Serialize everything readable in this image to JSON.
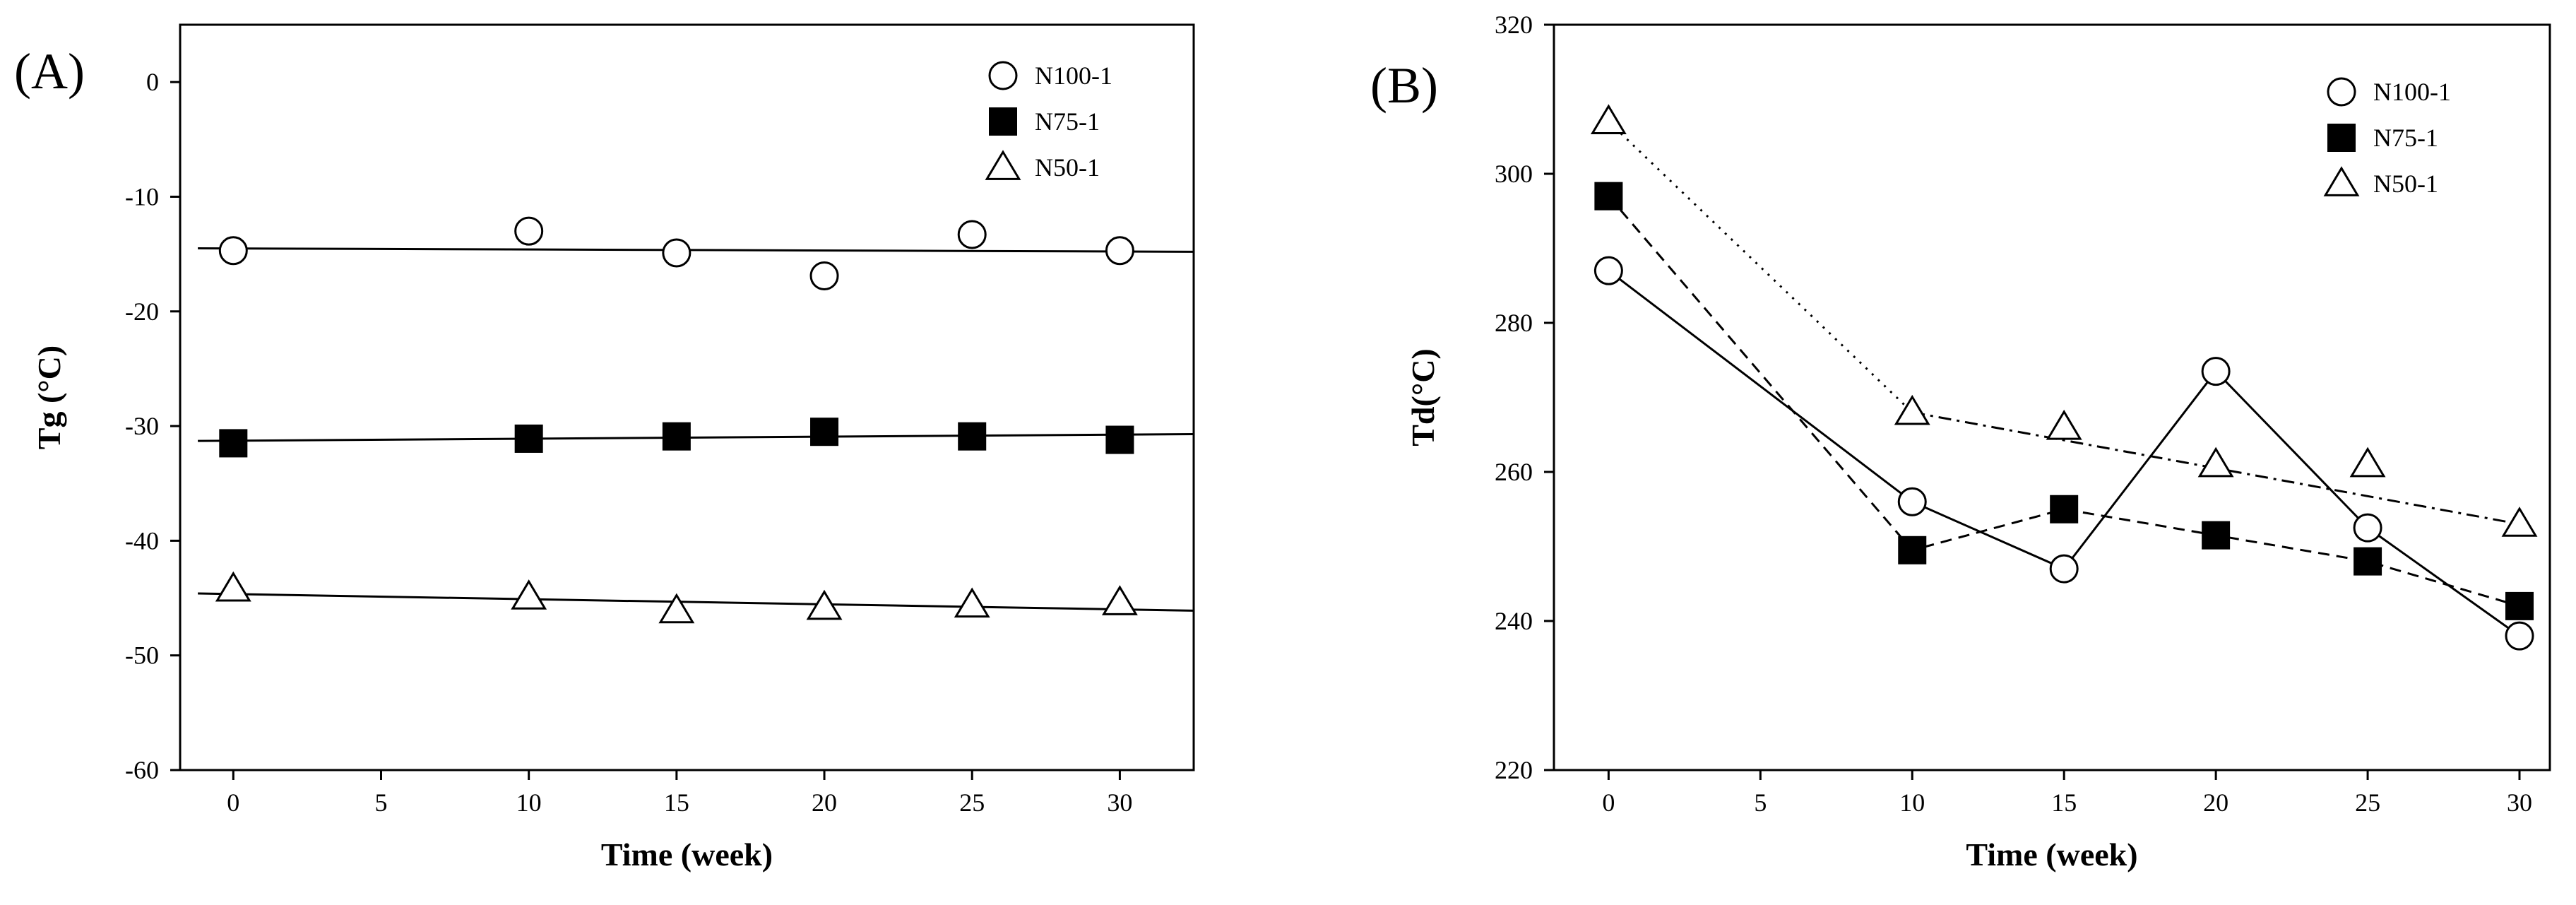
{
  "chart_data": [
    {
      "panel_label": "(A)",
      "type": "scatter",
      "xlabel": "Time (week)",
      "ylabel": "Tg (°C)",
      "xlim": [
        -1.8,
        32.5
      ],
      "ylim": [
        -60,
        5
      ],
      "xticks": [
        0,
        5,
        10,
        15,
        20,
        25,
        30
      ],
      "yticks": [
        0,
        -10,
        -20,
        -30,
        -40,
        -50,
        -60
      ],
      "legend_position": "top-right",
      "series": [
        {
          "name": "N100-1",
          "marker": "open-circle",
          "line": "linear-fit",
          "fit": [
            -14.5,
            -14.8
          ],
          "x": [
            0,
            10,
            15,
            20,
            25,
            30
          ],
          "y": [
            -14.7,
            -13.0,
            -14.9,
            -16.9,
            -13.3,
            -14.7
          ]
        },
        {
          "name": "N75-1",
          "marker": "filled-square",
          "line": "linear-fit",
          "fit": [
            -31.3,
            -30.7
          ],
          "x": [
            0,
            10,
            15,
            20,
            25,
            30
          ],
          "y": [
            -31.5,
            -31.1,
            -30.9,
            -30.5,
            -30.9,
            -31.2
          ]
        },
        {
          "name": "N50-1",
          "marker": "open-triangle",
          "line": "linear-fit",
          "fit": [
            -44.6,
            -46.1
          ],
          "x": [
            0,
            10,
            15,
            20,
            25,
            30
          ],
          "y": [
            -44.2,
            -44.9,
            -46.1,
            -45.8,
            -45.6,
            -45.4
          ]
        }
      ]
    },
    {
      "panel_label": "(B)",
      "type": "line",
      "xlabel": "Time (week)",
      "ylabel": "Td(°C)",
      "xlim": [
        -1.8,
        31
      ],
      "ylim": [
        220,
        320
      ],
      "xticks": [
        0,
        5,
        10,
        15,
        20,
        25,
        30
      ],
      "yticks": [
        220,
        240,
        260,
        280,
        300,
        320
      ],
      "legend_position": "top-right",
      "series": [
        {
          "name": "N100-1",
          "marker": "open-circle",
          "line": "solid",
          "x": [
            0,
            10,
            15,
            20,
            25,
            30
          ],
          "y": [
            287,
            256,
            247,
            273.5,
            252.5,
            238
          ]
        },
        {
          "name": "N75-1",
          "marker": "filled-square",
          "line": "dashed",
          "x": [
            0,
            10,
            15,
            20,
            25,
            30
          ],
          "y": [
            297,
            249.5,
            255,
            251.5,
            248,
            242
          ]
        },
        {
          "name": "N50-1",
          "marker": "open-triangle",
          "line": "dotted-then-dashdot",
          "x": [
            0,
            10,
            15,
            20,
            25,
            30
          ],
          "y": [
            307,
            268,
            266,
            261,
            261,
            253
          ]
        }
      ]
    }
  ]
}
